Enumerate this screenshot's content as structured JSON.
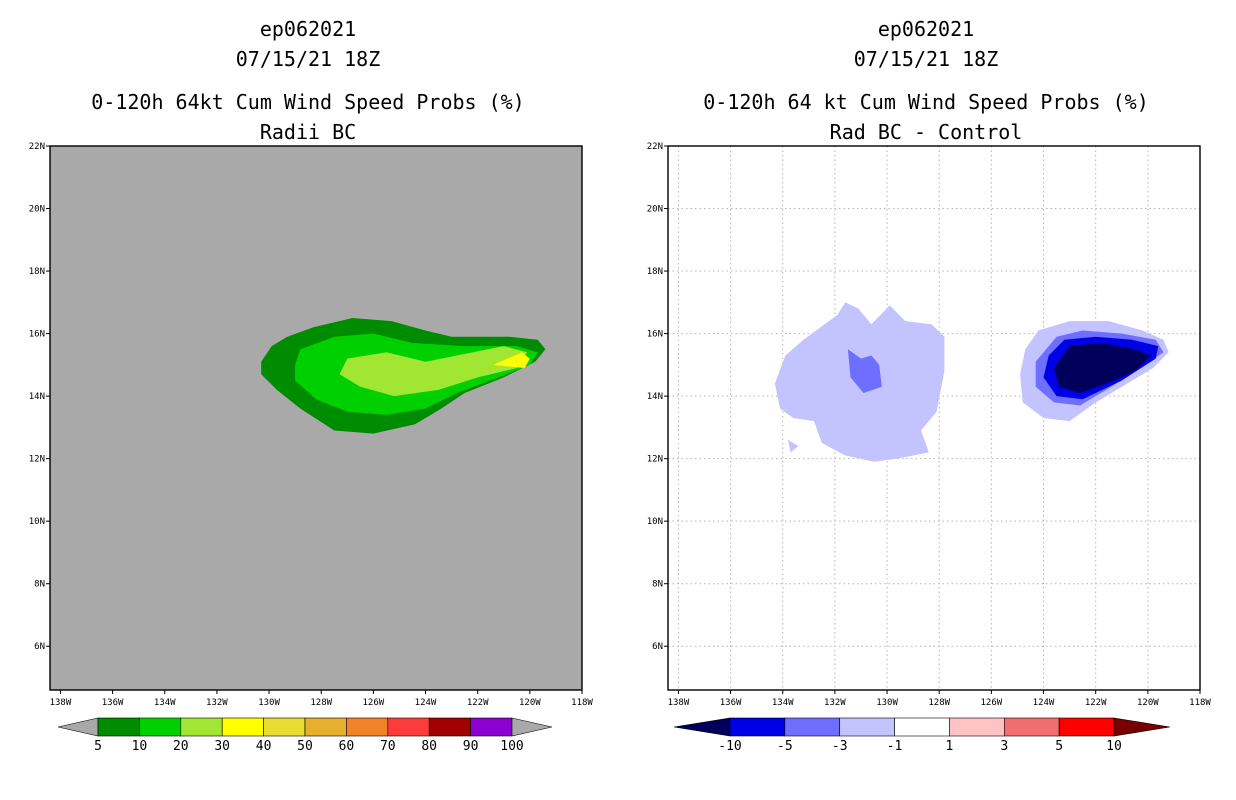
{
  "chart_data": [
    {
      "type": "filled-contour-map",
      "title_lines": [
        "ep062021",
        "07/15/21 18Z",
        "0-120h 64kt Cum Wind Speed Probs (%)",
        "Radii BC"
      ],
      "x_ticks": [
        "138W",
        "136W",
        "134W",
        "132W",
        "130W",
        "128W",
        "126W",
        "124W",
        "122W",
        "120W",
        "118W"
      ],
      "y_ticks": [
        "22N",
        "20N",
        "18N",
        "16N",
        "14N",
        "12N",
        "10N",
        "8N",
        "6N"
      ],
      "xlim_lon": [
        -138.4,
        -118
      ],
      "ylim_lat": [
        4.6,
        22
      ],
      "background_color": "#a9a9a9",
      "grid": false,
      "colorbar": {
        "labels": [
          "5",
          "10",
          "20",
          "30",
          "40",
          "50",
          "60",
          "70",
          "80",
          "90",
          "100"
        ],
        "colors": [
          "#008c00",
          "#00d000",
          "#a0e632",
          "#ffff00",
          "#e6dc32",
          "#e6af2d",
          "#f08228",
          "#fa3c3c",
          "#a00000",
          "#8c00d2"
        ],
        "under_color": "#a9a9a9",
        "over_color": "#a9a9a9"
      },
      "contours": [
        {
          "level_from": 5,
          "level_to": 10,
          "color": "#008c00",
          "polygon": [
            [
              -129.9,
              15.6
            ],
            [
              -129.3,
              15.9
            ],
            [
              -128.3,
              16.2
            ],
            [
              -126.8,
              16.5
            ],
            [
              -125.3,
              16.4
            ],
            [
              -124.0,
              16.1
            ],
            [
              -123.0,
              15.9
            ],
            [
              -120.8,
              15.9
            ],
            [
              -119.7,
              15.8
            ],
            [
              -119.4,
              15.5
            ],
            [
              -119.8,
              15.1
            ],
            [
              -121.0,
              14.6
            ],
            [
              -122.5,
              14.1
            ],
            [
              -123.4,
              13.6
            ],
            [
              -124.4,
              13.1
            ],
            [
              -126.0,
              12.8
            ],
            [
              -127.5,
              12.9
            ],
            [
              -128.8,
              13.6
            ],
            [
              -129.7,
              14.2
            ],
            [
              -130.3,
              14.7
            ],
            [
              -130.3,
              15.1
            ]
          ]
        },
        {
          "level_from": 10,
          "level_to": 20,
          "color": "#00d000",
          "polygon": [
            [
              -128.8,
              15.5
            ],
            [
              -127.5,
              15.9
            ],
            [
              -126.0,
              16.0
            ],
            [
              -124.5,
              15.7
            ],
            [
              -122.5,
              15.6
            ],
            [
              -120.5,
              15.6
            ],
            [
              -119.7,
              15.4
            ],
            [
              -120.0,
              15.0
            ],
            [
              -121.2,
              14.6
            ],
            [
              -122.8,
              14.1
            ],
            [
              -124.0,
              13.6
            ],
            [
              -125.5,
              13.4
            ],
            [
              -127.0,
              13.5
            ],
            [
              -128.2,
              13.9
            ],
            [
              -129.0,
              14.5
            ],
            [
              -129.0,
              15.0
            ]
          ]
        },
        {
          "level_from": 20,
          "level_to": 30,
          "color": "#a0e632",
          "polygon": [
            [
              -127.0,
              15.2
            ],
            [
              -125.5,
              15.4
            ],
            [
              -124.0,
              15.1
            ],
            [
              -122.8,
              15.3
            ],
            [
              -121.0,
              15.6
            ],
            [
              -120.1,
              15.4
            ],
            [
              -120.5,
              14.9
            ],
            [
              -122.0,
              14.6
            ],
            [
              -123.5,
              14.2
            ],
            [
              -125.2,
              14.0
            ],
            [
              -126.5,
              14.3
            ],
            [
              -127.3,
              14.7
            ]
          ]
        },
        {
          "level_from": 30,
          "level_to": 40,
          "color": "#ffff00",
          "polygon": [
            [
              -121.4,
              15.0
            ],
            [
              -120.3,
              15.4
            ],
            [
              -120.0,
              15.2
            ],
            [
              -120.2,
              14.9
            ]
          ]
        }
      ]
    },
    {
      "type": "filled-contour-map",
      "title_lines": [
        "ep062021",
        "07/15/21 18Z",
        "0-120h 64 kt Cum Wind Speed Probs (%)",
        "Rad BC - Control"
      ],
      "x_ticks": [
        "138W",
        "136W",
        "134W",
        "132W",
        "130W",
        "128W",
        "126W",
        "124W",
        "122W",
        "120W",
        "118W"
      ],
      "y_ticks": [
        "22N",
        "20N",
        "18N",
        "16N",
        "14N",
        "12N",
        "10N",
        "8N",
        "6N"
      ],
      "xlim_lon": [
        -138.4,
        -118
      ],
      "ylim_lat": [
        4.6,
        22
      ],
      "background_color": "#ffffff",
      "grid": true,
      "colorbar": {
        "labels": [
          "-10",
          "-5",
          "-3",
          "-1",
          "1",
          "3",
          "5",
          "10"
        ],
        "colors": [
          "#0000e6",
          "#6e6eff",
          "#c3c3ff",
          "#ffffff",
          "#ffc3c3",
          "#f06e6e",
          "#ff0000"
        ],
        "under_color": "#00005a",
        "over_color": "#780000"
      },
      "contours": [
        {
          "level_from": -3,
          "level_to": -1,
          "color": "#c3c3ff",
          "polygon": [
            [
              -131.9,
              16.6
            ],
            [
              -131.6,
              17.0
            ],
            [
              -131.1,
              16.8
            ],
            [
              -130.6,
              16.3
            ],
            [
              -129.9,
              16.9
            ],
            [
              -129.3,
              16.4
            ],
            [
              -128.3,
              16.3
            ],
            [
              -127.8,
              15.9
            ],
            [
              -127.8,
              14.8
            ],
            [
              -128.1,
              13.5
            ],
            [
              -128.7,
              12.9
            ],
            [
              -128.4,
              12.2
            ],
            [
              -129.6,
              12.0
            ],
            [
              -130.5,
              11.9
            ],
            [
              -131.6,
              12.1
            ],
            [
              -132.5,
              12.5
            ],
            [
              -132.8,
              13.2
            ],
            [
              -133.6,
              13.3
            ],
            [
              -134.1,
              13.6
            ],
            [
              -134.3,
              14.4
            ],
            [
              -133.9,
              15.3
            ],
            [
              -133.2,
              15.8
            ]
          ]
        },
        {
          "level_from": -5,
          "level_to": -3,
          "color": "#6e6eff",
          "polygon": [
            [
              -131.5,
              15.5
            ],
            [
              -131.0,
              15.2
            ],
            [
              -130.6,
              15.3
            ],
            [
              -130.3,
              15.0
            ],
            [
              -130.2,
              14.3
            ],
            [
              -130.9,
              14.1
            ],
            [
              -131.4,
              14.6
            ]
          ]
        },
        {
          "level_from": -3,
          "level_to": -1,
          "color": "#c3c3ff",
          "polygon": [
            [
              -133.8,
              12.6
            ],
            [
              -133.4,
              12.4
            ],
            [
              -133.7,
              12.2
            ]
          ]
        },
        {
          "level_from": -3,
          "level_to": -1,
          "color": "#c3c3ff",
          "polygon": [
            [
              -124.2,
              16.1
            ],
            [
              -123.0,
              16.4
            ],
            [
              -121.5,
              16.4
            ],
            [
              -120.2,
              16.1
            ],
            [
              -119.4,
              15.8
            ],
            [
              -119.2,
              15.4
            ],
            [
              -119.8,
              14.9
            ],
            [
              -120.8,
              14.4
            ],
            [
              -122.0,
              13.8
            ],
            [
              -123.0,
              13.2
            ],
            [
              -124.0,
              13.3
            ],
            [
              -124.8,
              13.8
            ],
            [
              -124.9,
              14.7
            ],
            [
              -124.7,
              15.5
            ]
          ]
        },
        {
          "level_from": -5,
          "level_to": -3,
          "color": "#6e6eff",
          "polygon": [
            [
              -123.5,
              15.9
            ],
            [
              -122.5,
              16.1
            ],
            [
              -121.0,
              16.0
            ],
            [
              -119.7,
              15.8
            ],
            [
              -119.4,
              15.4
            ],
            [
              -120.1,
              15.0
            ],
            [
              -121.4,
              14.3
            ],
            [
              -122.6,
              13.7
            ],
            [
              -123.6,
              13.8
            ],
            [
              -124.3,
              14.3
            ],
            [
              -124.3,
              15.1
            ]
          ]
        },
        {
          "level_from": -10,
          "level_to": -5,
          "color": "#0000e6",
          "polygon": [
            [
              -123.2,
              15.8
            ],
            [
              -122.0,
              15.9
            ],
            [
              -120.6,
              15.8
            ],
            [
              -119.6,
              15.6
            ],
            [
              -119.7,
              15.2
            ],
            [
              -121.0,
              14.5
            ],
            [
              -122.5,
              13.9
            ],
            [
              -123.5,
              14.0
            ],
            [
              -124.0,
              14.6
            ],
            [
              -123.8,
              15.3
            ]
          ]
        },
        {
          "level_from": -100,
          "level_to": -10,
          "color": "#00005a",
          "polygon": [
            [
              -123.0,
              15.6
            ],
            [
              -121.8,
              15.7
            ],
            [
              -120.5,
              15.5
            ],
            [
              -119.9,
              15.3
            ],
            [
              -120.5,
              14.8
            ],
            [
              -121.6,
              14.4
            ],
            [
              -122.6,
              14.1
            ],
            [
              -123.4,
              14.3
            ],
            [
              -123.6,
              14.9
            ]
          ]
        }
      ]
    }
  ]
}
